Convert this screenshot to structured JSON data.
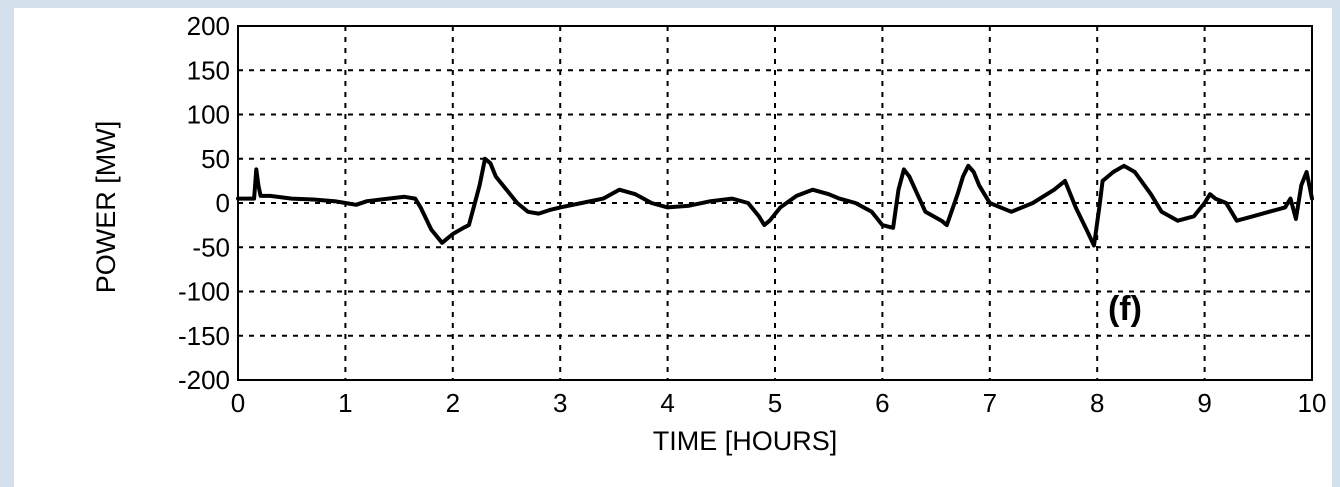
{
  "chart_data": {
    "type": "line",
    "title": "",
    "xlabel": "TIME [HOURS]",
    "ylabel": "POWER [MW]",
    "xlim": [
      0,
      10
    ],
    "ylim": [
      -200,
      200
    ],
    "xticks": [
      "0",
      "1",
      "2",
      "3",
      "4",
      "5",
      "6",
      "7",
      "8",
      "9",
      "10"
    ],
    "yticks": [
      "200",
      "150",
      "100",
      "50",
      "0",
      "-50",
      "-100",
      "-150",
      "-200"
    ],
    "grid": true,
    "panel_label": "(f)",
    "series": [
      {
        "color": "#000000",
        "x": [
          0,
          0.15,
          0.17,
          0.19,
          0.21,
          0.3,
          0.5,
          0.7,
          0.9,
          1.0,
          1.1,
          1.2,
          1.4,
          1.55,
          1.65,
          1.7,
          1.8,
          1.9,
          1.95,
          2.0,
          2.1,
          2.15,
          2.25,
          2.3,
          2.35,
          2.4,
          2.5,
          2.6,
          2.7,
          2.8,
          2.9,
          3.0,
          3.2,
          3.4,
          3.55,
          3.7,
          3.85,
          4.0,
          4.2,
          4.4,
          4.6,
          4.75,
          4.85,
          4.9,
          4.95,
          5.05,
          5.2,
          5.35,
          5.5,
          5.6,
          5.75,
          5.9,
          6.0,
          6.1,
          6.15,
          6.2,
          6.25,
          6.4,
          6.55,
          6.6,
          6.7,
          6.75,
          6.8,
          6.85,
          6.9,
          7.0,
          7.2,
          7.4,
          7.6,
          7.7,
          7.8,
          7.9,
          7.97,
          8.02,
          8.05,
          8.1,
          8.15,
          8.25,
          8.35,
          8.5,
          8.6,
          8.75,
          8.9,
          9.0,
          9.05,
          9.1,
          9.2,
          9.3,
          9.45,
          9.6,
          9.75,
          9.8,
          9.85,
          9.9,
          9.95,
          10.0
        ],
        "y": [
          5,
          5,
          38,
          20,
          8,
          8,
          5,
          4,
          2,
          0,
          -2,
          2,
          5,
          7,
          5,
          -5,
          -30,
          -45,
          -40,
          -35,
          -28,
          -25,
          20,
          50,
          45,
          30,
          15,
          0,
          -10,
          -12,
          -8,
          -5,
          0,
          5,
          15,
          10,
          0,
          -5,
          -3,
          2,
          5,
          0,
          -15,
          -25,
          -20,
          -5,
          8,
          15,
          10,
          5,
          0,
          -10,
          -25,
          -28,
          15,
          38,
          30,
          -10,
          -20,
          -25,
          10,
          30,
          42,
          35,
          20,
          0,
          -10,
          0,
          15,
          25,
          -5,
          -30,
          -48,
          -5,
          25,
          30,
          35,
          42,
          35,
          10,
          -10,
          -20,
          -15,
          0,
          10,
          5,
          0,
          -20,
          -15,
          -10,
          -5,
          5,
          -18,
          20,
          35,
          5
        ]
      }
    ]
  }
}
